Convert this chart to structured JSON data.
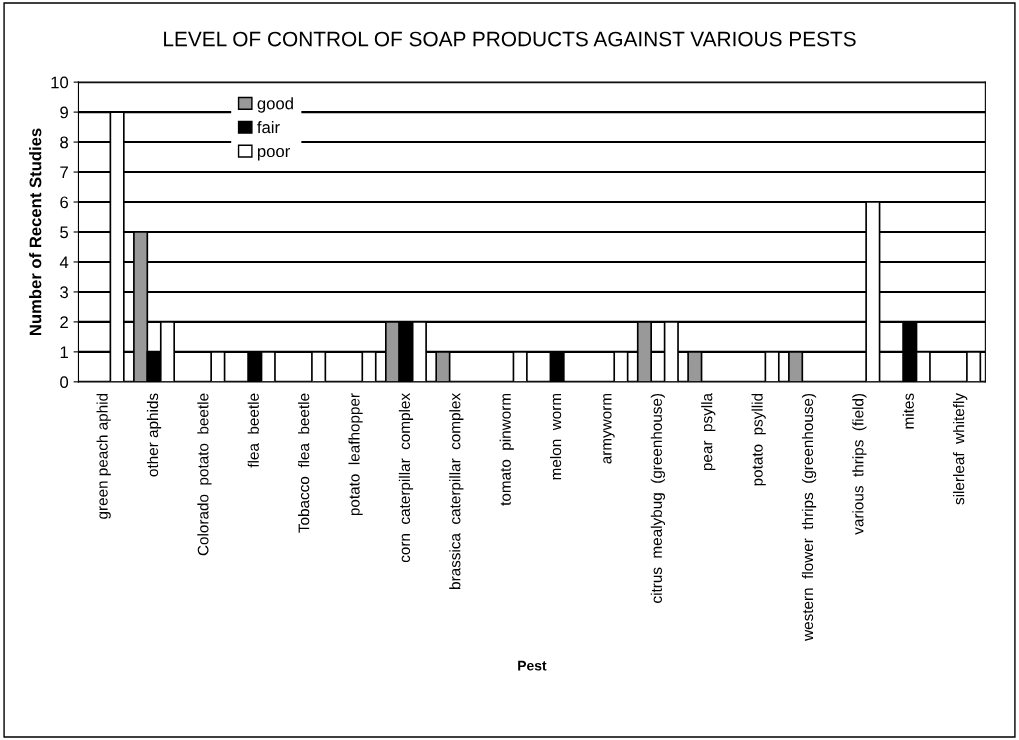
{
  "chart_data": {
    "type": "bar",
    "title": "LEVEL OF CONTROL OF SOAP PRODUCTS AGAINST VARIOUS PESTS",
    "xlabel": "Pest",
    "ylabel": "Number of Recent Studies",
    "categories": [
      "green peach aphid",
      "other aphids",
      "Colorado  potato  beetle",
      "flea  beetle",
      "Tobacco  flea  beetle",
      "potato  leafhopper",
      "corn  caterpillar  complex",
      "brassica  caterpillar  complex",
      "tomato  pinworm",
      "melon  worm",
      "armyworm",
      "citrus  mealybug  (greenhouse)",
      "pear  psylla",
      "potato  psyllid",
      "western  flower  thrips  (greenhouse)",
      "various  thrips  (field)",
      "mites",
      "silerleaf  whitefly"
    ],
    "series": [
      {
        "name": "good",
        "color": "#999999",
        "values": [
          0,
          5,
          0,
          0,
          0,
          0,
          2,
          1,
          0,
          0,
          0,
          2,
          1,
          0,
          1,
          0,
          0,
          0
        ]
      },
      {
        "name": "fair",
        "color": "#000000",
        "values": [
          0,
          1,
          0,
          1,
          0,
          0,
          2,
          0,
          0,
          1,
          0,
          0,
          0,
          0,
          0,
          0,
          2,
          0
        ]
      },
      {
        "name": "poor",
        "color": "#ffffff",
        "values": [
          9,
          2,
          1,
          1,
          1,
          1,
          2,
          0,
          1,
          0,
          1,
          2,
          0,
          1,
          0,
          6,
          1,
          1
        ]
      }
    ],
    "ylim": [
      0,
      10
    ],
    "yticks": [
      0,
      1,
      2,
      3,
      4,
      5,
      6,
      7,
      8,
      9,
      10
    ],
    "grid": "y",
    "legend": "top left"
  }
}
